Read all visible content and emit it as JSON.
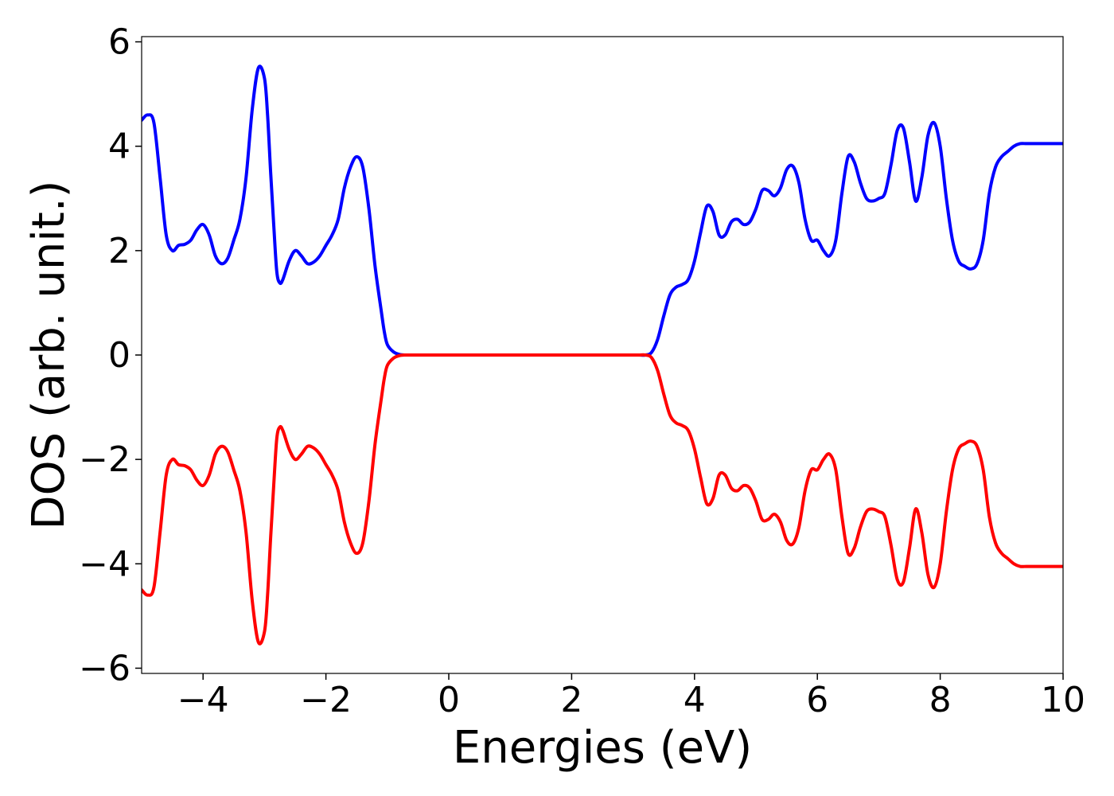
{
  "chart_data": {
    "type": "line",
    "title": "",
    "xlabel": "Energies (eV)",
    "ylabel": "DOS (arb. unit.)",
    "xlim": [
      -5,
      10
    ],
    "ylim": [
      -6.1,
      6.1
    ],
    "xticks": [
      -4,
      -2,
      0,
      2,
      4,
      6,
      8,
      10
    ],
    "xtick_labels": [
      "−4",
      "−2",
      "0",
      "2",
      "4",
      "6",
      "8",
      "10"
    ],
    "yticks": [
      -6,
      -4,
      -2,
      0,
      2,
      4,
      6
    ],
    "ytick_labels": [
      "−6",
      "−4",
      "−2",
      "0",
      "2",
      "4",
      "6"
    ],
    "grid": false,
    "legend": "none",
    "series": [
      {
        "color": "#0000ff",
        "x": [
          -5.0,
          -4.9,
          -4.8,
          -4.7,
          -4.6,
          -4.5,
          -4.4,
          -4.3,
          -4.2,
          -4.1,
          -4.0,
          -3.9,
          -3.8,
          -3.7,
          -3.6,
          -3.5,
          -3.4,
          -3.3,
          -3.2,
          -3.1,
          -3.0,
          -2.95,
          -2.9,
          -2.85,
          -2.8,
          -2.75,
          -2.7,
          -2.6,
          -2.5,
          -2.4,
          -2.3,
          -2.2,
          -2.1,
          -2.0,
          -1.9,
          -1.8,
          -1.7,
          -1.6,
          -1.5,
          -1.4,
          -1.3,
          -1.2,
          -1.1,
          -1.05,
          -1.0,
          -0.9,
          -0.8,
          -0.7,
          -0.6,
          -0.5,
          -0.4,
          0.0,
          1.0,
          2.0,
          2.5,
          2.8,
          3.0,
          3.1,
          3.2,
          3.3,
          3.4,
          3.5,
          3.6,
          3.7,
          3.8,
          3.9,
          4.0,
          4.1,
          4.2,
          4.3,
          4.4,
          4.5,
          4.6,
          4.7,
          4.8,
          4.9,
          5.0,
          5.1,
          5.2,
          5.3,
          5.4,
          5.5,
          5.6,
          5.7,
          5.8,
          5.9,
          6.0,
          6.1,
          6.2,
          6.3,
          6.4,
          6.5,
          6.6,
          6.7,
          6.8,
          6.9,
          7.0,
          7.1,
          7.2,
          7.3,
          7.4,
          7.5,
          7.6,
          7.7,
          7.8,
          7.9,
          8.0,
          8.1,
          8.2,
          8.3,
          8.4,
          8.5,
          8.6,
          8.7,
          8.8,
          8.9,
          9.0,
          9.1,
          9.2,
          9.3,
          9.4,
          9.5,
          9.6,
          9.7,
          9.8,
          9.9,
          10.0
        ],
        "y": [
          4.5,
          4.6,
          4.45,
          3.4,
          2.3,
          2.0,
          2.1,
          2.12,
          2.2,
          2.4,
          2.5,
          2.3,
          1.9,
          1.75,
          1.85,
          2.2,
          2.6,
          3.4,
          4.7,
          5.5,
          5.3,
          4.6,
          3.5,
          2.5,
          1.6,
          1.38,
          1.45,
          1.8,
          2.0,
          1.9,
          1.75,
          1.78,
          1.9,
          2.1,
          2.3,
          2.6,
          3.2,
          3.6,
          3.8,
          3.6,
          2.8,
          1.7,
          0.85,
          0.45,
          0.2,
          0.06,
          0.01,
          0.0,
          0.0,
          0.0,
          0.0,
          0.0,
          0.0,
          0.0,
          0.0,
          0.0,
          0.0,
          0.0,
          0.0,
          0.05,
          0.3,
          0.75,
          1.15,
          1.3,
          1.35,
          1.45,
          1.8,
          2.35,
          2.85,
          2.75,
          2.3,
          2.3,
          2.55,
          2.6,
          2.5,
          2.55,
          2.8,
          3.15,
          3.15,
          3.05,
          3.2,
          3.55,
          3.62,
          3.3,
          2.6,
          2.2,
          2.2,
          2.0,
          1.9,
          2.2,
          3.1,
          3.8,
          3.7,
          3.3,
          3.0,
          2.95,
          3.0,
          3.1,
          3.65,
          4.3,
          4.35,
          3.7,
          2.95,
          3.4,
          4.2,
          4.45,
          4.0,
          3.0,
          2.2,
          1.8,
          1.7,
          1.65,
          1.75,
          2.2,
          3.1,
          3.6,
          3.8,
          3.9,
          4.0,
          4.05,
          4.05,
          4.05,
          4.05,
          4.05,
          4.05,
          4.05,
          4.05
        ]
      },
      {
        "color": "#ff0000",
        "x": [
          -5.0,
          -4.9,
          -4.8,
          -4.7,
          -4.6,
          -4.5,
          -4.4,
          -4.3,
          -4.2,
          -4.1,
          -4.0,
          -3.9,
          -3.8,
          -3.7,
          -3.6,
          -3.5,
          -3.4,
          -3.3,
          -3.2,
          -3.1,
          -3.0,
          -2.95,
          -2.9,
          -2.85,
          -2.8,
          -2.75,
          -2.7,
          -2.6,
          -2.5,
          -2.4,
          -2.3,
          -2.2,
          -2.1,
          -2.0,
          -1.9,
          -1.8,
          -1.7,
          -1.6,
          -1.5,
          -1.4,
          -1.3,
          -1.2,
          -1.1,
          -1.05,
          -1.0,
          -0.9,
          -0.8,
          -0.7,
          -0.6,
          -0.5,
          -0.4,
          0.0,
          1.0,
          2.0,
          2.5,
          2.8,
          3.0,
          3.1,
          3.2,
          3.3,
          3.4,
          3.5,
          3.6,
          3.7,
          3.8,
          3.9,
          4.0,
          4.1,
          4.2,
          4.3,
          4.4,
          4.5,
          4.6,
          4.7,
          4.8,
          4.9,
          5.0,
          5.1,
          5.2,
          5.3,
          5.4,
          5.5,
          5.6,
          5.7,
          5.8,
          5.9,
          6.0,
          6.1,
          6.2,
          6.3,
          6.4,
          6.5,
          6.6,
          6.7,
          6.8,
          6.9,
          7.0,
          7.1,
          7.2,
          7.3,
          7.4,
          7.5,
          7.6,
          7.7,
          7.8,
          7.9,
          8.0,
          8.1,
          8.2,
          8.3,
          8.4,
          8.5,
          8.6,
          8.7,
          8.8,
          8.9,
          9.0,
          9.1,
          9.2,
          9.3,
          9.4,
          9.5,
          9.6,
          9.7,
          9.8,
          9.9,
          10.0
        ],
        "y": [
          -4.5,
          -4.6,
          -4.45,
          -3.4,
          -2.3,
          -2.0,
          -2.1,
          -2.12,
          -2.2,
          -2.4,
          -2.5,
          -2.3,
          -1.9,
          -1.75,
          -1.85,
          -2.2,
          -2.6,
          -3.4,
          -4.7,
          -5.5,
          -5.3,
          -4.6,
          -3.5,
          -2.5,
          -1.6,
          -1.38,
          -1.45,
          -1.8,
          -2.0,
          -1.9,
          -1.75,
          -1.78,
          -1.9,
          -2.1,
          -2.3,
          -2.6,
          -3.2,
          -3.6,
          -3.8,
          -3.6,
          -2.8,
          -1.7,
          -0.85,
          -0.45,
          -0.2,
          -0.06,
          -0.01,
          0.0,
          0.0,
          0.0,
          0.0,
          0.0,
          0.0,
          0.0,
          0.0,
          0.0,
          0.0,
          0.0,
          0.0,
          -0.05,
          -0.3,
          -0.75,
          -1.15,
          -1.3,
          -1.35,
          -1.45,
          -1.8,
          -2.35,
          -2.85,
          -2.75,
          -2.3,
          -2.3,
          -2.55,
          -2.6,
          -2.5,
          -2.55,
          -2.8,
          -3.15,
          -3.15,
          -3.05,
          -3.2,
          -3.55,
          -3.62,
          -3.3,
          -2.6,
          -2.2,
          -2.2,
          -2.0,
          -1.9,
          -2.2,
          -3.1,
          -3.8,
          -3.7,
          -3.3,
          -3.0,
          -2.95,
          -3.0,
          -3.1,
          -3.65,
          -4.3,
          -4.35,
          -3.7,
          -2.95,
          -3.4,
          -4.2,
          -4.45,
          -4.0,
          -3.0,
          -2.2,
          -1.8,
          -1.7,
          -1.65,
          -1.75,
          -2.2,
          -3.1,
          -3.6,
          -3.8,
          -3.9,
          -4.0,
          -4.05,
          -4.05,
          -4.05,
          -4.05,
          -4.05,
          -4.05,
          -4.05,
          -4.05
        ]
      }
    ]
  }
}
